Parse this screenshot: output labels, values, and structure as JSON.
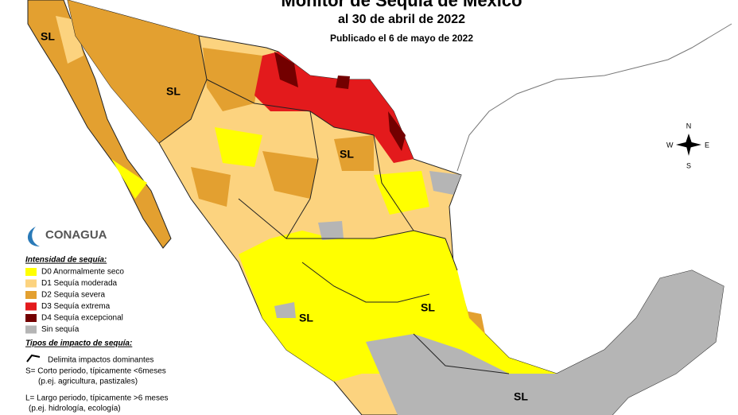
{
  "header": {
    "title": "Monitor de Sequía de México",
    "date": "al 30 de abril de 2022",
    "published": "Publicado el 6 de mayo de 2022"
  },
  "logo": "CONAGUA",
  "map": {
    "labels": [
      "SL",
      "SL",
      "SL",
      "SL",
      "SL",
      "SL"
    ],
    "compass": {
      "north": "N",
      "south": "S",
      "east": "E",
      "west": "W"
    }
  },
  "legend": {
    "title": "Intensidad de sequía:",
    "items": [
      {
        "label": "D0 Anormalmente seco",
        "color": "#ffff00"
      },
      {
        "label": "D1 Sequía moderada",
        "color": "#fcd37f"
      },
      {
        "label": "D2 Sequía severa",
        "color": "#e3a030"
      },
      {
        "label": "D3 Sequía extrema",
        "color": "#e31a1c"
      },
      {
        "label": "D4 Sequía excepcional",
        "color": "#730000"
      },
      {
        "label": "Sin sequía",
        "color": "#b5b5b5"
      }
    ],
    "impact_title": "Tipos de impacto de sequía:",
    "impact_line": "Delimita impactos dominantes",
    "short_term": "S= Corto periodo, típicamente <6meses",
    "short_term_example": "(p.ej. agricultura, pastizales)",
    "long_term": "L= Largo periodo, típicamente >6 meses",
    "long_term_example": "(p.ej. hidrología, ecología)"
  }
}
